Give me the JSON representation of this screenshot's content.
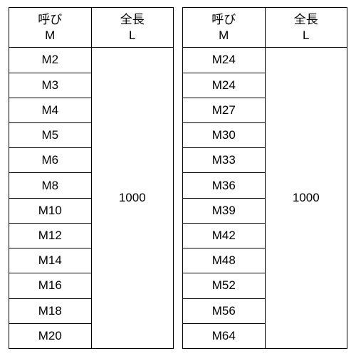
{
  "tables": [
    {
      "headers": {
        "col1_line1": "呼び",
        "col1_line2": "M",
        "col2_line1": "全長",
        "col2_line2": "L"
      },
      "rows": [
        "M2",
        "M3",
        "M4",
        "M5",
        "M6",
        "M8",
        "M10",
        "M12",
        "M14",
        "M16",
        "M18",
        "M20"
      ],
      "merged_value": "1000"
    },
    {
      "headers": {
        "col1_line1": "呼び",
        "col1_line2": "M",
        "col2_line1": "全長",
        "col2_line2": "L"
      },
      "rows": [
        "M24",
        "M24",
        "M27",
        "M30",
        "M33",
        "M36",
        "M39",
        "M42",
        "M48",
        "M52",
        "M56",
        "M64"
      ],
      "merged_value": "1000"
    }
  ]
}
